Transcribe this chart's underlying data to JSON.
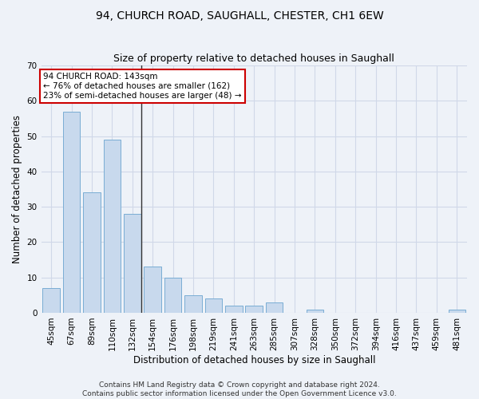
{
  "title": "94, CHURCH ROAD, SAUGHALL, CHESTER, CH1 6EW",
  "subtitle": "Size of property relative to detached houses in Saughall",
  "xlabel": "Distribution of detached houses by size in Saughall",
  "ylabel": "Number of detached properties",
  "categories": [
    "45sqm",
    "67sqm",
    "89sqm",
    "110sqm",
    "132sqm",
    "154sqm",
    "176sqm",
    "198sqm",
    "219sqm",
    "241sqm",
    "263sqm",
    "285sqm",
    "307sqm",
    "328sqm",
    "350sqm",
    "372sqm",
    "394sqm",
    "416sqm",
    "437sqm",
    "459sqm",
    "481sqm"
  ],
  "values": [
    7,
    57,
    34,
    49,
    28,
    13,
    10,
    5,
    4,
    2,
    2,
    3,
    0,
    1,
    0,
    0,
    0,
    0,
    0,
    0,
    1
  ],
  "bar_color": "#c8d9ed",
  "bar_edge_color": "#7aadd4",
  "highlight_bar_index": 4,
  "highlight_line_color": "#333333",
  "annotation_text": "94 CHURCH ROAD: 143sqm\n← 76% of detached houses are smaller (162)\n23% of semi-detached houses are larger (48) →",
  "annotation_box_color": "#ffffff",
  "annotation_box_edge_color": "#cc0000",
  "ylim": [
    0,
    70
  ],
  "yticks": [
    0,
    10,
    20,
    30,
    40,
    50,
    60,
    70
  ],
  "grid_color": "#d0d8e8",
  "background_color": "#eef2f8",
  "footer_line1": "Contains HM Land Registry data © Crown copyright and database right 2024.",
  "footer_line2": "Contains public sector information licensed under the Open Government Licence v3.0.",
  "title_fontsize": 10,
  "subtitle_fontsize": 9,
  "xlabel_fontsize": 8.5,
  "ylabel_fontsize": 8.5,
  "tick_fontsize": 7.5,
  "annotation_fontsize": 7.5,
  "footer_fontsize": 6.5
}
